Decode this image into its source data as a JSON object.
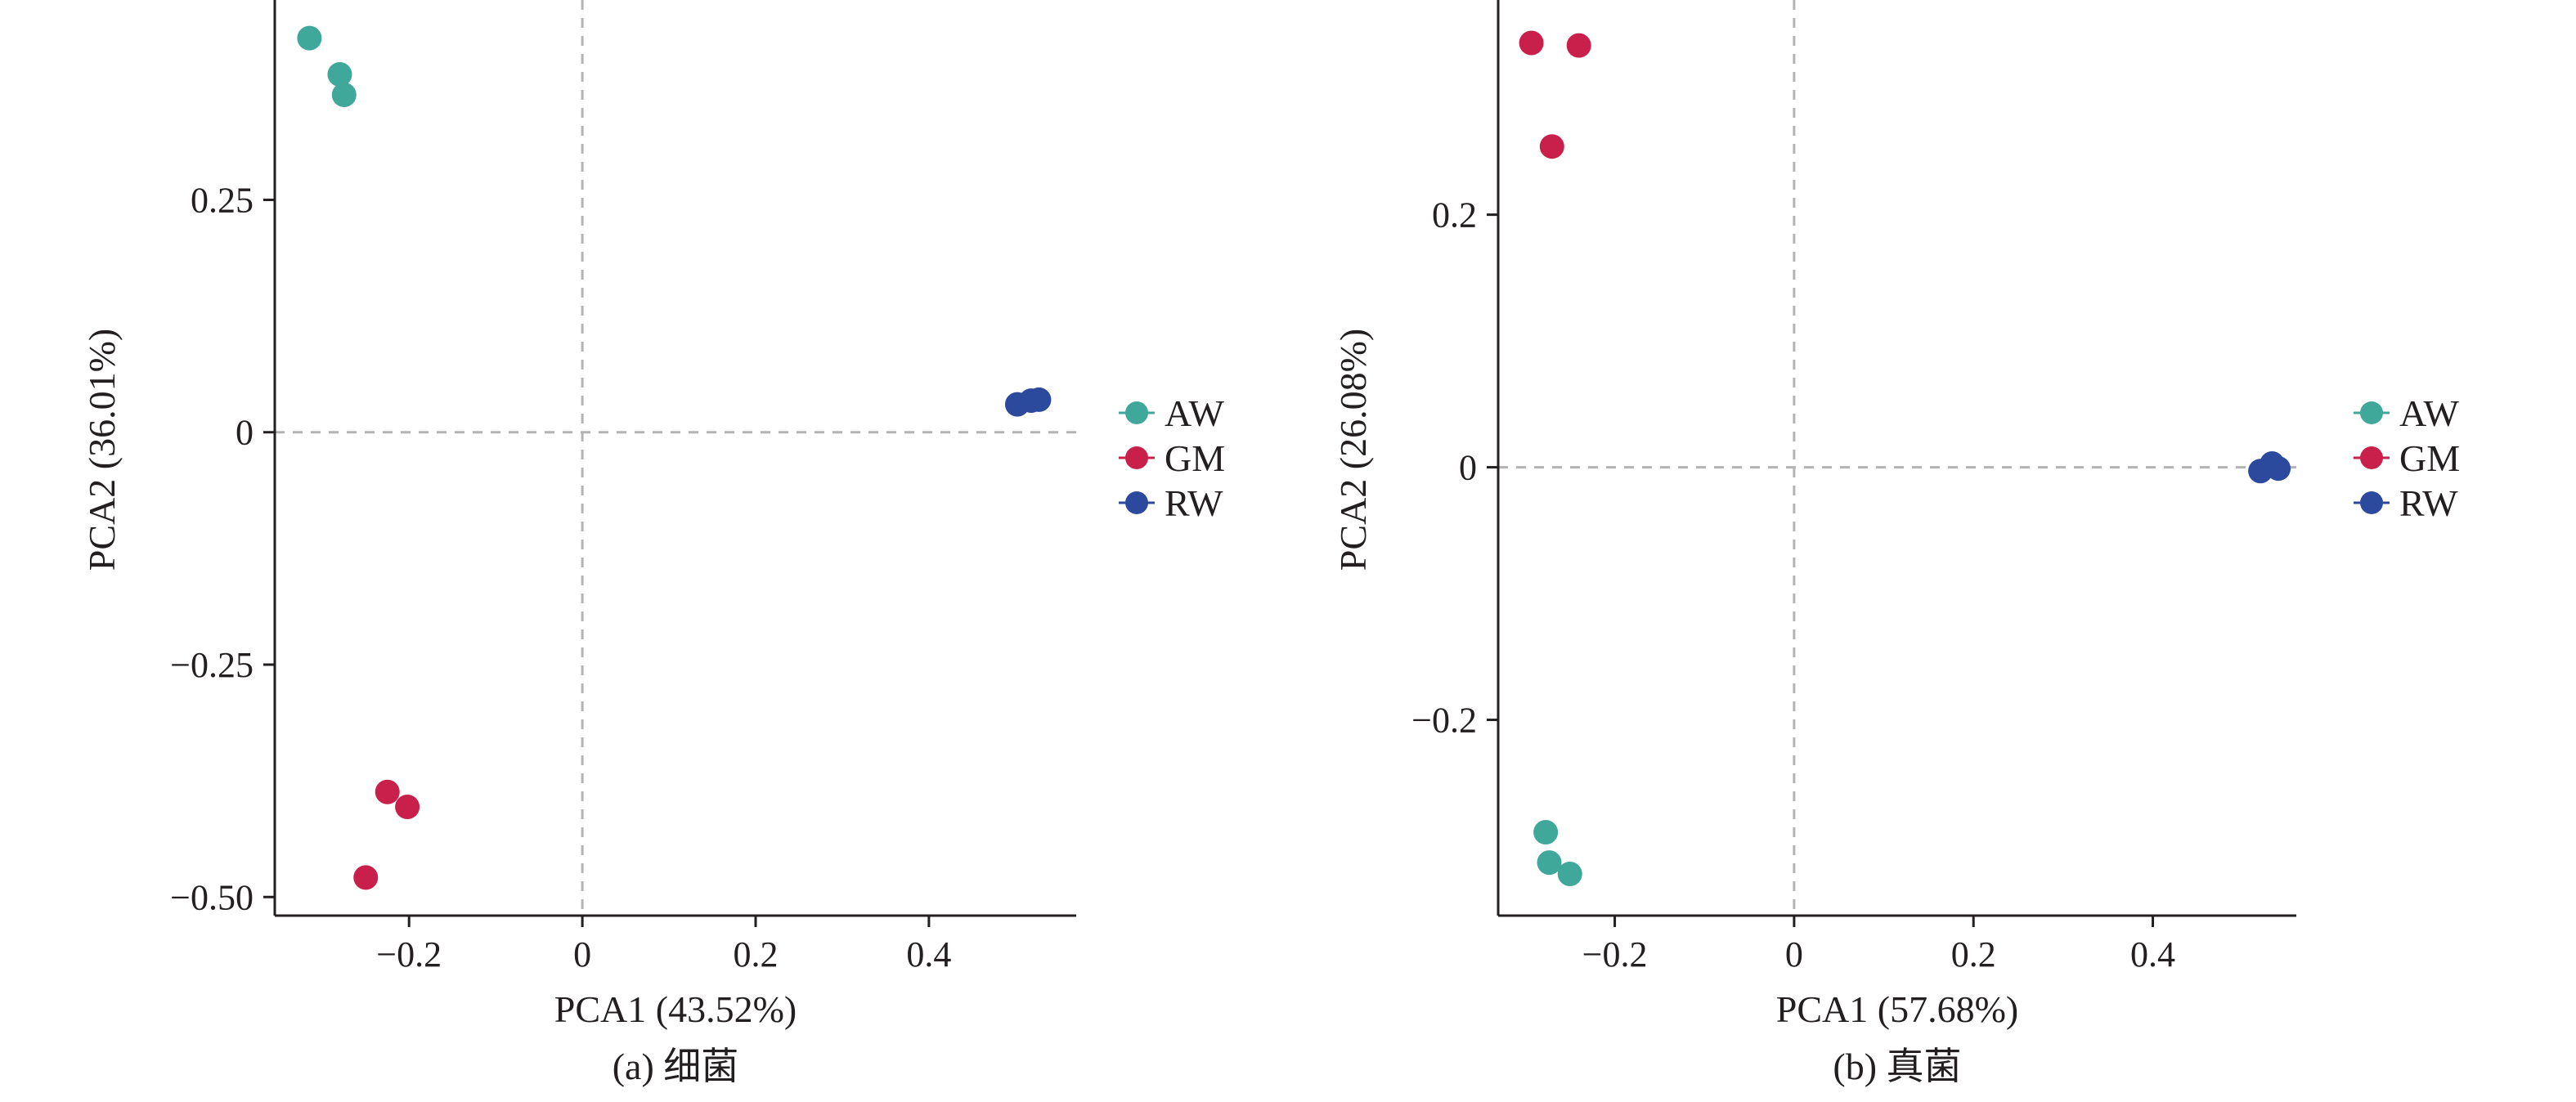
{
  "chart_data": [
    {
      "type": "scatter",
      "caption": "(a) 细菌",
      "xlabel": "PCA1 (43.52%)",
      "ylabel": "PCA2 (36.01%)",
      "xlim": [
        -0.355,
        0.57
      ],
      "ylim": [
        -0.52,
        0.465
      ],
      "xticks": [
        -0.2,
        0,
        0.2,
        0.4
      ],
      "xtick_labels": [
        "−0.2",
        "0",
        "0.2",
        "0.4"
      ],
      "yticks": [
        -0.5,
        -0.25,
        0,
        0.25
      ],
      "ytick_labels": [
        "−0.50",
        "−0.25",
        "0",
        "0.25"
      ],
      "reference_lines": {
        "x": 0,
        "y": 0,
        "style": "dashed"
      },
      "legend_position": "right",
      "series": [
        {
          "name": "AW",
          "color": "#3fa89a",
          "points": [
            [
              -0.315,
              0.424
            ],
            [
              -0.28,
              0.385
            ],
            [
              -0.275,
              0.363
            ]
          ]
        },
        {
          "name": "GM",
          "color": "#c8204a",
          "points": [
            [
              -0.225,
              -0.387
            ],
            [
              -0.202,
              -0.403
            ],
            [
              -0.25,
              -0.479
            ]
          ]
        },
        {
          "name": "RW",
          "color": "#2b4a9e",
          "points": [
            [
              0.502,
              0.03
            ],
            [
              0.518,
              0.034
            ],
            [
              0.527,
              0.035
            ]
          ]
        }
      ]
    },
    {
      "type": "scatter",
      "caption": "(b) 真菌",
      "xlabel": "PCA1 (57.68%)",
      "ylabel": "PCA2 (26.08%)",
      "xlim": [
        -0.33,
        0.56
      ],
      "ylim": [
        -0.355,
        0.37
      ],
      "xticks": [
        -0.2,
        0,
        0.2,
        0.4
      ],
      "xtick_labels": [
        "−0.2",
        "0",
        "0.2",
        "0.4"
      ],
      "yticks": [
        -0.2,
        0,
        0.2
      ],
      "ytick_labels": [
        "−0.2",
        "0",
        "0.2"
      ],
      "reference_lines": {
        "x": 0,
        "y": 0,
        "style": "dashed"
      },
      "legend_position": "right",
      "series": [
        {
          "name": "AW",
          "color": "#3fa89a",
          "points": [
            [
              -0.277,
              -0.289
            ],
            [
              -0.273,
              -0.313
            ],
            [
              -0.25,
              -0.322
            ]
          ]
        },
        {
          "name": "GM",
          "color": "#c8204a",
          "points": [
            [
              -0.293,
              0.336
            ],
            [
              -0.24,
              0.334
            ],
            [
              -0.27,
              0.254
            ]
          ]
        },
        {
          "name": "RW",
          "color": "#2b4a9e",
          "points": [
            [
              0.52,
              -0.003
            ],
            [
              0.533,
              0.003
            ],
            [
              0.54,
              -0.001
            ]
          ]
        }
      ]
    }
  ]
}
